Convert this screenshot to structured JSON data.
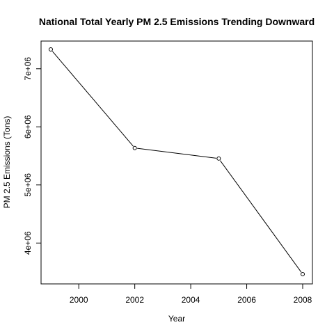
{
  "chart_data": {
    "type": "line",
    "title": "National Total Yearly PM 2.5 Emissions Trending Downward",
    "xlabel": "Year",
    "ylabel": "PM 2.5 Emissions (Tons)",
    "x": [
      1999,
      2002,
      2005,
      2008
    ],
    "series": [
      {
        "values": [
          7332967,
          5635780,
          5454703,
          3464206
        ]
      }
    ],
    "xlim": [
      1999,
      2008
    ],
    "ylim": [
      3464206,
      7332967
    ],
    "xticks": [
      2000,
      2002,
      2004,
      2006,
      2008
    ],
    "xtick_labels": [
      "2000",
      "2002",
      "2004",
      "2006",
      "2008"
    ],
    "yticks": [
      4000000,
      5000000,
      6000000,
      7000000
    ],
    "ytick_labels": [
      "4e+06",
      "5e+06",
      "6e+06",
      "7e+06"
    ],
    "grid": false,
    "line_color": "#000000",
    "marker": "open-circle"
  }
}
